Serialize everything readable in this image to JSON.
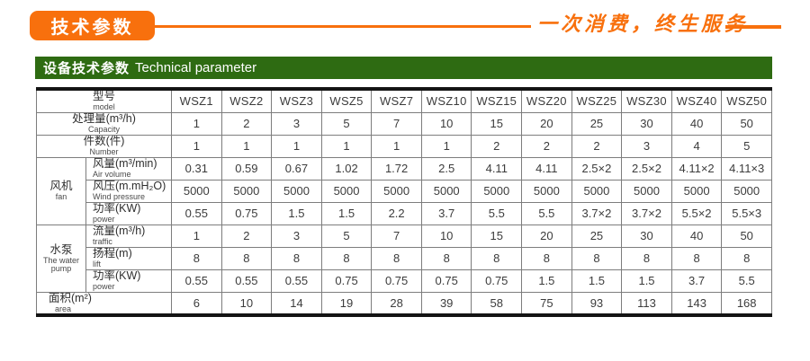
{
  "page": {
    "accent_color": "#f8700d",
    "green_color": "#2e6b12",
    "badge_label": "技术参数",
    "slogan": "一次消费，终生服务"
  },
  "section_header": {
    "title_zh": "设备技术参数",
    "title_en": "Technical parameter"
  },
  "table": {
    "model_label": {
      "zh": "型号",
      "en": "model"
    },
    "models": [
      "WSZ1",
      "WSZ2",
      "WSZ3",
      "WSZ5",
      "WSZ7",
      "WSZ10",
      "WSZ15",
      "WSZ20",
      "WSZ25",
      "WSZ30",
      "WSZ40",
      "WSZ50"
    ],
    "groups": [
      {
        "zh": "风机",
        "en": "fan"
      },
      {
        "zh": "水泵",
        "en": "The water pump"
      }
    ],
    "rows": [
      {
        "key": "capacity",
        "zh": "处理量(m³/h)",
        "en": "Capacity",
        "values": [
          "1",
          "2",
          "3",
          "5",
          "7",
          "10",
          "15",
          "20",
          "25",
          "30",
          "40",
          "50"
        ]
      },
      {
        "key": "number",
        "zh": "件数(件)",
        "en": "Number",
        "values": [
          "1",
          "1",
          "1",
          "1",
          "1",
          "1",
          "2",
          "2",
          "2",
          "3",
          "4",
          "5"
        ]
      },
      {
        "key": "air-volume",
        "zh": "风量(m³/min)",
        "en": "Air volume",
        "values": [
          "0.31",
          "0.59",
          "0.67",
          "1.02",
          "1.72",
          "2.5",
          "4.11",
          "4.11",
          "2.5×2",
          "2.5×2",
          "4.11×2",
          "4.11×3"
        ]
      },
      {
        "key": "wind-pressure",
        "zh": "风压(m.mH₂O)",
        "en": "Wind pressure",
        "values": [
          "5000",
          "5000",
          "5000",
          "5000",
          "5000",
          "5000",
          "5000",
          "5000",
          "5000",
          "5000",
          "5000",
          "5000"
        ]
      },
      {
        "key": "fan-power",
        "zh": "功率(KW)",
        "en": "power",
        "values": [
          "0.55",
          "0.75",
          "1.5",
          "1.5",
          "2.2",
          "3.7",
          "5.5",
          "5.5",
          "3.7×2",
          "3.7×2",
          "5.5×2",
          "5.5×3"
        ]
      },
      {
        "key": "traffic",
        "zh": "流量(m³/h)",
        "en": "traffic",
        "values": [
          "1",
          "2",
          "3",
          "5",
          "7",
          "10",
          "15",
          "20",
          "25",
          "30",
          "40",
          "50"
        ]
      },
      {
        "key": "lift",
        "zh": "扬程(m)",
        "en": "lift",
        "values": [
          "8",
          "8",
          "8",
          "8",
          "8",
          "8",
          "8",
          "8",
          "8",
          "8",
          "8",
          "8"
        ]
      },
      {
        "key": "pump-power",
        "zh": "功率(KW)",
        "en": "power",
        "values": [
          "0.55",
          "0.55",
          "0.55",
          "0.75",
          "0.75",
          "0.75",
          "0.75",
          "1.5",
          "1.5",
          "1.5",
          "3.7",
          "5.5"
        ]
      },
      {
        "key": "area",
        "zh": "面积(m²)",
        "en": "area",
        "values": [
          "6",
          "10",
          "14",
          "19",
          "28",
          "39",
          "58",
          "75",
          "93",
          "113",
          "143",
          "168"
        ]
      }
    ]
  }
}
